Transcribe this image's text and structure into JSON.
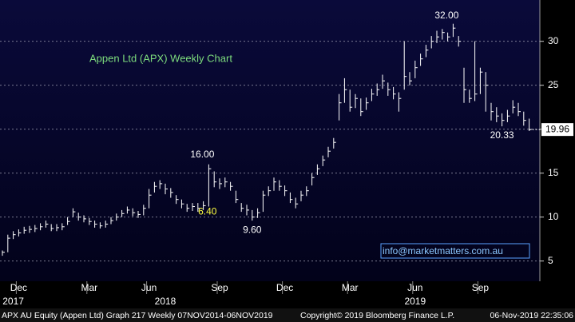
{
  "chart_data": {
    "type": "hlc",
    "title": "Appen Ltd (APX) Weekly Chart",
    "footer": [
      "APX AU Equity (Appen Ltd) Graph 217 Weekly 07NOV2014-06NOV2019",
      "Copyright© 2019 Bloomberg Finance L.P.",
      "06-Nov-2019 22:35:06"
    ],
    "watermark": "info@marketmatters.com.au",
    "annotations": [
      {
        "text": "32.00",
        "at": 83
      },
      {
        "text": "16.00",
        "at": 38
      },
      {
        "text": "6.40",
        "at": 36
      },
      {
        "text": "9.60",
        "at": 46
      },
      {
        "text": "20.33",
        "at": 92
      }
    ],
    "categories": [
      null,
      null,
      null,
      "Dec",
      null,
      null,
      null,
      null,
      null,
      null,
      null,
      null,
      null,
      null,
      null,
      null,
      "Mar",
      null,
      null,
      null,
      null,
      null,
      null,
      null,
      null,
      null,
      null,
      "Jun",
      null,
      null,
      null,
      null,
      null,
      null,
      null,
      null,
      null,
      null,
      null,
      null,
      "Sep",
      null,
      null,
      null,
      null,
      null,
      null,
      null,
      null,
      null,
      null,
      null,
      "Dec",
      null,
      null,
      null,
      null,
      null,
      null,
      null,
      null,
      null,
      null,
      null,
      "Mar",
      null,
      null,
      null,
      null,
      null,
      null,
      null,
      null,
      null,
      null,
      null,
      "Jun",
      null,
      null,
      null,
      null,
      null,
      null,
      null,
      null,
      null,
      null,
      null,
      "Sep",
      null,
      null,
      null,
      null,
      null,
      null,
      null,
      null,
      null
    ],
    "years": [
      null,
      null,
      "2017",
      null,
      null,
      null,
      null,
      null,
      null,
      null,
      null,
      null,
      null,
      null,
      null,
      null,
      null,
      null,
      null,
      null,
      null,
      null,
      null,
      null,
      null,
      null,
      null,
      null,
      null,
      null,
      "2018",
      null,
      null,
      null,
      null,
      null,
      null,
      null,
      null,
      null,
      null,
      null,
      null,
      null,
      null,
      null,
      null,
      null,
      null,
      null,
      null,
      null,
      null,
      null,
      null,
      null,
      null,
      null,
      null,
      null,
      null,
      null,
      null,
      null,
      null,
      null,
      null,
      null,
      null,
      null,
      null,
      null,
      null,
      null,
      null,
      null,
      "2019",
      null,
      null,
      null,
      null,
      null,
      null,
      null,
      null,
      null,
      null,
      null,
      null,
      null,
      null,
      null,
      null,
      null,
      null,
      null,
      null,
      null
    ],
    "close": [
      6.0,
      7.6,
      8.0,
      8.2,
      8.5,
      8.6,
      8.7,
      8.9,
      9.2,
      8.7,
      8.8,
      8.9,
      9.5,
      10.6,
      10.0,
      9.8,
      9.5,
      9.2,
      9.0,
      9.2,
      9.6,
      10.0,
      10.4,
      10.8,
      10.5,
      10.3,
      11.0,
      12.5,
      13.5,
      13.8,
      13.2,
      12.8,
      12.0,
      11.5,
      11.0,
      11.2,
      11.0,
      11.3,
      15.5,
      14.0,
      13.8,
      14.0,
      13.5,
      12.0,
      11.0,
      10.8,
      10.0,
      10.5,
      12.5,
      13.0,
      14.0,
      13.5,
      13.0,
      12.0,
      11.5,
      12.5,
      13.0,
      14.5,
      15.5,
      16.5,
      17.5,
      18.5,
      23.0,
      24.5,
      22.5,
      23.5,
      22.0,
      23.0,
      24.0,
      24.5,
      25.5,
      24.5,
      24.0,
      23.5,
      26.0,
      25.5,
      27.0,
      28.0,
      29.0,
      30.0,
      30.5,
      31.0,
      30.5,
      31.5,
      30.0,
      24.5,
      23.5,
      24.0,
      26.5,
      25.0,
      22.0,
      21.5,
      21.0,
      21.5,
      22.5,
      22.0,
      21.0,
      19.96
    ],
    "high": [
      6.2,
      8.0,
      8.4,
      8.6,
      8.9,
      9.0,
      9.1,
      9.3,
      9.6,
      9.2,
      9.2,
      9.3,
      10.0,
      11.0,
      10.5,
      10.2,
      9.9,
      9.6,
      9.4,
      9.6,
      10.0,
      10.4,
      10.8,
      11.2,
      11.0,
      10.7,
      11.4,
      13.2,
      14.0,
      14.2,
      13.8,
      13.3,
      12.5,
      12.0,
      11.5,
      11.6,
      11.6,
      11.8,
      16.0,
      15.2,
      14.4,
      14.5,
      14.0,
      13.0,
      11.6,
      11.4,
      10.8,
      11.0,
      13.0,
      13.5,
      14.5,
      14.2,
      13.6,
      12.8,
      12.2,
      13.0,
      13.5,
      15.0,
      16.0,
      17.0,
      18.0,
      19.0,
      24.0,
      25.8,
      24.5,
      24.0,
      23.5,
      23.6,
      24.6,
      25.2,
      26.2,
      25.3,
      24.8,
      24.2,
      30.0,
      26.5,
      27.8,
      28.6,
      29.6,
      30.6,
      31.2,
      31.4,
      31.0,
      32.0,
      30.6,
      27.0,
      24.5,
      30.0,
      27.0,
      26.5,
      23.0,
      22.5,
      21.8,
      22.2,
      23.3,
      23.0,
      22.0,
      21.2
    ],
    "low": [
      5.6,
      6.0,
      7.5,
      7.8,
      8.1,
      8.2,
      8.3,
      8.5,
      8.8,
      8.4,
      8.4,
      8.5,
      9.1,
      10.0,
      9.6,
      9.4,
      9.1,
      8.8,
      8.7,
      8.8,
      9.2,
      9.6,
      10.0,
      10.4,
      10.1,
      9.9,
      10.2,
      11.0,
      12.8,
      13.2,
      12.6,
      12.2,
      11.5,
      11.0,
      10.6,
      10.7,
      10.6,
      10.8,
      11.2,
      13.4,
      13.2,
      13.4,
      13.0,
      11.6,
      10.6,
      10.2,
      9.6,
      9.9,
      10.6,
      12.4,
      13.0,
      13.0,
      12.4,
      11.6,
      11.0,
      11.8,
      12.4,
      13.6,
      14.8,
      15.8,
      16.8,
      17.8,
      21.0,
      23.0,
      22.0,
      22.4,
      21.5,
      22.2,
      23.2,
      23.8,
      24.6,
      23.8,
      23.4,
      22.0,
      24.5,
      25.0,
      25.8,
      27.2,
      28.2,
      29.2,
      29.8,
      30.2,
      30.0,
      30.5,
      29.4,
      23.0,
      23.0,
      23.2,
      24.0,
      22.0,
      21.0,
      20.8,
      20.33,
      20.8,
      21.8,
      21.5,
      20.4,
      19.8
    ],
    "ylim": [
      2.7,
      34.7
    ],
    "yticks": [
      5,
      10,
      15,
      20,
      25,
      30
    ],
    "grid": true,
    "color": "#ffffff",
    "title_color": "#7ddc7d"
  }
}
